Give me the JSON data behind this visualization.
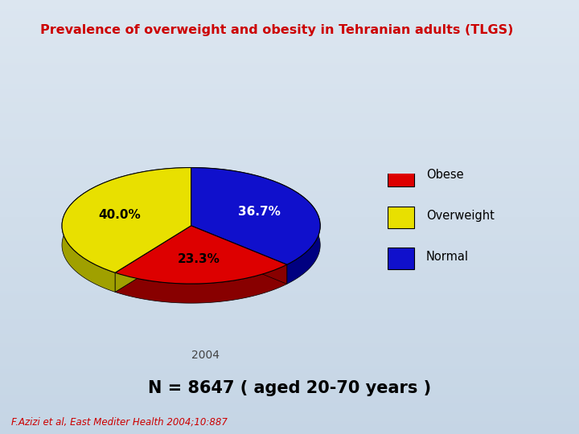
{
  "title": "Prevalence of overweight and obesity in Tehranian adults (TLGS)",
  "title_color": "#cc0000",
  "title_fontsize": 11.5,
  "slices": [
    36.7,
    23.3,
    40.0
  ],
  "labels": [
    "Normal",
    "Obese",
    "Overweight"
  ],
  "colors_top": [
    "#1010cc",
    "#dd0000",
    "#e8e000"
  ],
  "colors_side": [
    "#000080",
    "#880000",
    "#a0a000"
  ],
  "autopct_labels": [
    "36.7%",
    "23.3%",
    "40.0%"
  ],
  "pct_colors": [
    "white",
    "black",
    "black"
  ],
  "legend_labels": [
    "Obese",
    "Overweight",
    "Normal"
  ],
  "legend_colors": [
    "#dd0000",
    "#e8e000",
    "#1010cc"
  ],
  "startangle": 90,
  "year_text": "2004",
  "n_text": "N = 8647 ( aged 20-70 years )",
  "n_fontsize": 15,
  "citation_text": "F.Azizi et al, East Mediter Health 2004;10:887",
  "citation_color": "#cc0000",
  "citation_fontsize": 8.5,
  "bg_gradient_top": "#c5d5e5",
  "bg_gradient_bottom": "#dce6f0"
}
